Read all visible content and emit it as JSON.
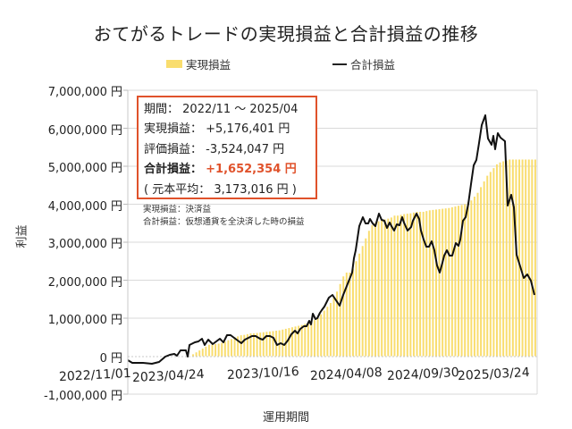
{
  "title": "おてがるトレードの実現損益と合計損益の推移",
  "legend": {
    "realized": "実現損益",
    "total": "合計損益"
  },
  "axes": {
    "ylabel": "利益",
    "xlabel": "運用期間",
    "yticks": [
      "7,000,000 円",
      "6,000,000 円",
      "5,000,000 円",
      "4,000,000 円",
      "3,000,000 円",
      "2,000,000 円",
      "1,000,000 円",
      "0 円",
      "-1,000,000 円"
    ],
    "xticks": [
      "2022/11/01",
      "2023/04/24",
      "2023/10/16",
      "2024/04/08",
      "2024/09/30",
      "2025/03/24"
    ]
  },
  "infobox": {
    "period_label": "期間：",
    "period_value": "2022/11 ～ 2025/04",
    "realized_label": "実現損益：",
    "realized_value": "+5,176,401 円",
    "unrealized_label": "評価損益：",
    "unrealized_value": "-3,524,047 円",
    "total_label": "合計損益：",
    "total_value": "+1,652,354 円",
    "principal_label": "( 元本平均：",
    "principal_value": "3,173,016 円 )"
  },
  "notes": {
    "line1": "実現損益：決済益",
    "line2": "合計損益：仮想通貨を全決済した時の損益"
  },
  "colors": {
    "bar": "#f9dd6e",
    "line": "#111111",
    "accent": "#e0522b",
    "grid": "#d9d9d9"
  },
  "chart_data": {
    "type": "bar+line",
    "title": "おてがるトレードの実現損益と合計損益の推移",
    "xlabel": "運用期間",
    "ylabel": "利益",
    "ylim": [
      -1000000,
      7000000
    ],
    "ytick_step": 1000000,
    "grid": true,
    "legend_position": "top",
    "x_start": "2022/11/01",
    "x_end": "2025/04",
    "x_tick_labels": [
      "2022/11/01",
      "2023/04/24",
      "2023/10/16",
      "2024/04/08",
      "2024/09/30",
      "2025/03/24"
    ],
    "series": [
      {
        "name": "実現損益",
        "kind": "bar",
        "values_yen_approx_by_week": [
          0,
          0,
          0,
          0,
          0,
          0,
          0,
          0,
          0,
          0,
          0,
          0,
          0,
          0,
          0,
          0,
          0,
          0,
          0,
          0,
          50000,
          100000,
          150000,
          200000,
          250000,
          300000,
          300000,
          320000,
          330000,
          350000,
          380000,
          420000,
          450000,
          500000,
          520000,
          550000,
          560000,
          580000,
          600000,
          600000,
          610000,
          620000,
          630000,
          640000,
          650000,
          660000,
          670000,
          680000,
          700000,
          720000,
          740000,
          760000,
          780000,
          800000,
          820000,
          850000,
          880000,
          900000,
          950000,
          1000000,
          1100000,
          1200000,
          1300000,
          1400000,
          1550000,
          1700000,
          1900000,
          2100000,
          2200000,
          2200000,
          2300000,
          2500000,
          2700000,
          2900000,
          3100000,
          3300000,
          3450000,
          3500000,
          3550000,
          3580000,
          3600000,
          3620000,
          3650000,
          3700000,
          3700000,
          3720000,
          3740000,
          3750000,
          3760000,
          3780000,
          3800000,
          3800000,
          3800000,
          3820000,
          3840000,
          3850000,
          3860000,
          3870000,
          3880000,
          3890000,
          3900000,
          3920000,
          3940000,
          3960000,
          3980000,
          4000000,
          4050000,
          4100000,
          4200000,
          4300000,
          4450000,
          4600000,
          4750000,
          4850000,
          4950000,
          5050000,
          5100000,
          5130000,
          5150000,
          5176401,
          5176401,
          5176401,
          5176401,
          5176401,
          5176401,
          5176401,
          5176401,
          5176401
        ],
        "final_value": 5176401
      },
      {
        "name": "合計損益",
        "kind": "line",
        "points_approx": [
          {
            "x": "2022/11/01",
            "y": -100000
          },
          {
            "x": "2022/12",
            "y": -170000
          },
          {
            "x": "2023/01",
            "y": -180000
          },
          {
            "x": "2023/02",
            "y": -150000
          },
          {
            "x": "2023/03",
            "y": 50000
          },
          {
            "x": "2023/04",
            "y": 150000
          },
          {
            "x": "2023/04/24",
            "y": -20000
          },
          {
            "x": "2023/05",
            "y": 350000
          },
          {
            "x": "2023/06",
            "y": 450000
          },
          {
            "x": "2023/07",
            "y": 400000
          },
          {
            "x": "2023/08",
            "y": 550000
          },
          {
            "x": "2023/09",
            "y": 500000
          },
          {
            "x": "2023/10/16",
            "y": 480000
          },
          {
            "x": "2023/11",
            "y": 300000
          },
          {
            "x": "2023/12",
            "y": 700000
          },
          {
            "x": "2024/01",
            "y": 1000000
          },
          {
            "x": "2024/02",
            "y": 1300000
          },
          {
            "x": "2024/03",
            "y": 1600000
          },
          {
            "x": "2024/04/08",
            "y": 2200000
          },
          {
            "x": "2024/05",
            "y": 3800000
          },
          {
            "x": "2024/06",
            "y": 3500000
          },
          {
            "x": "2024/07",
            "y": 3600000
          },
          {
            "x": "2024/08",
            "y": 3400000
          },
          {
            "x": "2024/08b",
            "y": 4250000
          },
          {
            "x": "2024/09",
            "y": 3300000
          },
          {
            "x": "2024/09/30",
            "y": 2900000
          },
          {
            "x": "2024/10",
            "y": 1650000
          },
          {
            "x": "2024/11",
            "y": 2650000
          },
          {
            "x": "2024/12",
            "y": 3100000
          },
          {
            "x": "2025/01",
            "y": 5200000
          },
          {
            "x": "2025/02",
            "y": 6300000
          },
          {
            "x": "2025/02b",
            "y": 5600000
          },
          {
            "x": "2025/03",
            "y": 5800000
          },
          {
            "x": "2025/03/24",
            "y": 4000000
          },
          {
            "x": "2025/04a",
            "y": 2200000
          },
          {
            "x": "2025/04",
            "y": 1652354
          }
        ],
        "final_value": 1652354
      }
    ],
    "annotations": {
      "period": "2022/11 ～ 2025/04",
      "realized": 5176401,
      "unrealized": -3524047,
      "total": 1652354,
      "average_principal": 3173016
    }
  }
}
